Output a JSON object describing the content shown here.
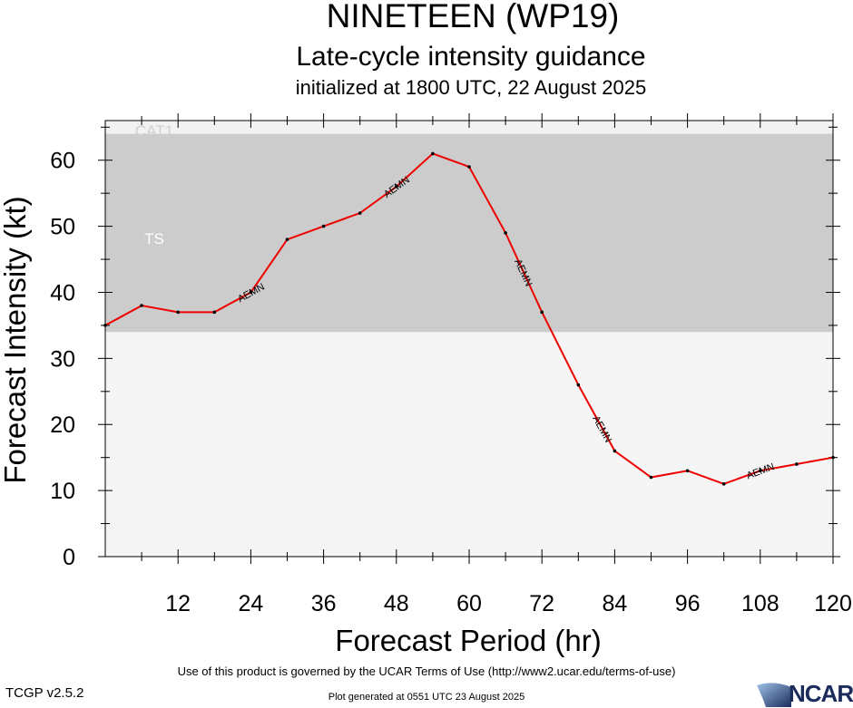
{
  "header": {
    "title": "NINETEEN (WP19)",
    "subtitle": "Late-cycle intensity guidance",
    "init": "initialized at 1800 UTC, 22 August 2025"
  },
  "footer": {
    "terms": "Use of this product is governed by the UCAR Terms of Use (http://www2.ucar.edu/terms-of-use)",
    "version": "TCGP v2.5.2",
    "generated": "Plot generated at 0551 UTC   23 August 2025",
    "logo_text": "NCAR"
  },
  "chart_data": {
    "type": "line",
    "xlabel": "Forecast Period (hr)",
    "ylabel": "Forecast Intensity (kt)",
    "xlim": [
      0,
      120
    ],
    "ylim": [
      0,
      66
    ],
    "xticks": [
      12,
      24,
      36,
      48,
      60,
      72,
      84,
      96,
      108,
      120
    ],
    "yticks": [
      0,
      10,
      20,
      30,
      40,
      50,
      60
    ],
    "bands": [
      {
        "label": "TS",
        "from": 34,
        "to": 64,
        "color": "#cccccc"
      },
      {
        "label": "CAT1",
        "from": 64,
        "to": 66,
        "color": "#f2f2f2"
      }
    ],
    "series": [
      {
        "name": "AEMN",
        "color": "#ee0000",
        "x": [
          0,
          6,
          12,
          18,
          24,
          30,
          36,
          42,
          48,
          54,
          60,
          66,
          72,
          78,
          84,
          90,
          96,
          102,
          108,
          114,
          120
        ],
        "y": [
          35,
          38,
          37,
          37,
          40,
          48,
          50,
          52,
          56,
          61,
          59,
          49,
          37,
          26,
          16,
          12,
          13,
          11,
          13,
          14,
          15
        ],
        "label_x": [
          24,
          48,
          69,
          82,
          108
        ]
      }
    ]
  }
}
